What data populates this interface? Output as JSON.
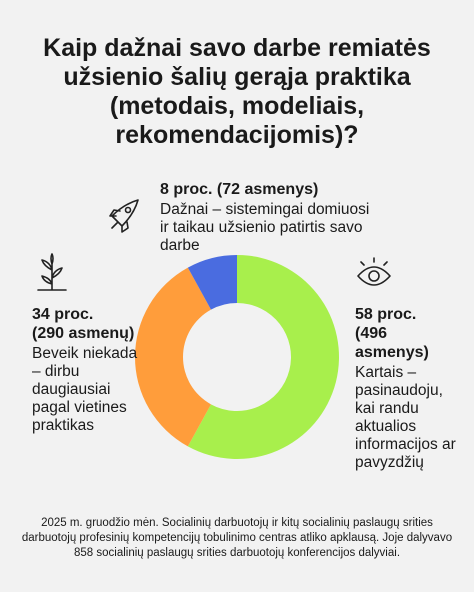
{
  "chart_data": {
    "type": "donut",
    "title": "Kaip dažnai savo darbe remiatės užsienio šalių gerąja praktika (metodais, modeliais, rekomendacijomis)?",
    "categories": [
      "Kartais – pasinaudoju, kai randu aktualios informacijos ar pavyzdžių",
      "Beveik niekada – dirbu daugiausiai pagal vietines praktikas",
      "Dažnai – sistemingai domiuosi ir taikau užsienio patirtis savo darbe"
    ],
    "values": [
      58,
      34,
      8
    ],
    "value_labels": [
      "58 proc.",
      "34 proc.",
      "8 proc."
    ],
    "count_labels": [
      "(496 asmenys)",
      "(290 asmenų)",
      "(72 asmenys)"
    ],
    "colors": [
      "#a8ef4c",
      "#ff9d3b",
      "#4a6ce0"
    ],
    "note": "2025 m. gruodžio mėn. Socialinių darbuotojų ir kitų socialinių paslaugų srities darbuotojų profesinių kompetencijų tobulinimo centras atliko apklausą. Joje dalyvavo 858 socialinių paslaugų srities darbuotojų konferencijos dalyviai."
  }
}
